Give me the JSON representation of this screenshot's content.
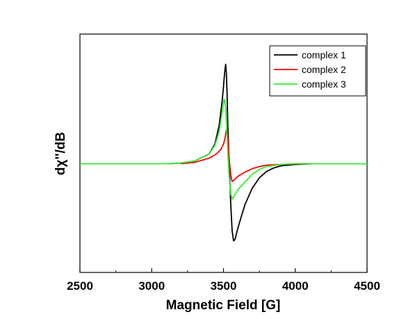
{
  "chart_data": {
    "type": "line",
    "title": "",
    "xlabel": "Magnetic Field [G]",
    "ylabel": "dχ''/dB",
    "xlim": [
      2500,
      4500
    ],
    "ylim": [
      -1.55,
      1.85
    ],
    "x_ticks": [
      2500,
      3000,
      3500,
      4000,
      4500
    ],
    "x_tick_labels": [
      "2500",
      "3000",
      "3500",
      "4000",
      "4500"
    ],
    "y_ticks_shown": false,
    "grid": false,
    "legend_position": "top-right",
    "series": [
      {
        "name": "complex 1",
        "color": "#000000",
        "x": [
          3120,
          3200,
          3300,
          3400,
          3440,
          3470,
          3490,
          3500,
          3508,
          3515,
          3520,
          3525,
          3530,
          3540,
          3550,
          3560,
          3570,
          3580,
          3590,
          3600,
          3620,
          3650,
          3700,
          3750,
          3800,
          3850,
          3900,
          4000,
          4120
        ],
        "y": [
          0.0,
          0.01,
          0.04,
          0.14,
          0.28,
          0.55,
          0.88,
          1.1,
          1.3,
          1.42,
          1.3,
          1.0,
          0.55,
          0.0,
          -0.55,
          -0.95,
          -1.1,
          -1.08,
          -1.0,
          -0.92,
          -0.78,
          -0.58,
          -0.35,
          -0.2,
          -0.11,
          -0.06,
          -0.03,
          -0.01,
          0.0
        ]
      },
      {
        "name": "complex 2",
        "color": "#ff0000",
        "x": [
          3200,
          3300,
          3400,
          3450,
          3480,
          3500,
          3510,
          3520,
          3525,
          3530,
          3540,
          3550,
          3560,
          3570,
          3580,
          3600,
          3650,
          3700,
          3750,
          3800,
          3900,
          4000,
          4120
        ],
        "y": [
          0.0,
          0.02,
          0.08,
          0.14,
          0.2,
          0.28,
          0.36,
          0.48,
          0.46,
          0.35,
          0.05,
          -0.15,
          -0.25,
          -0.24,
          -0.22,
          -0.18,
          -0.12,
          -0.07,
          -0.04,
          -0.02,
          -0.01,
          0.0,
          0.0
        ]
      },
      {
        "name": "complex 3",
        "color": "#33ee33",
        "x": [
          2500,
          3100,
          3200,
          3300,
          3400,
          3440,
          3470,
          3490,
          3500,
          3505,
          3510,
          3515,
          3520,
          3525,
          3530,
          3540,
          3550,
          3560,
          3570,
          3580,
          3600,
          3650,
          3700,
          3750,
          3800,
          3900,
          4000,
          4500
        ],
        "y": [
          0.0,
          0.0,
          0.01,
          0.04,
          0.14,
          0.26,
          0.46,
          0.72,
          0.86,
          0.92,
          0.88,
          0.8,
          0.62,
          0.4,
          0.15,
          -0.2,
          -0.42,
          -0.5,
          -0.48,
          -0.44,
          -0.37,
          -0.26,
          -0.15,
          -0.08,
          -0.04,
          -0.01,
          0.0,
          0.0
        ]
      }
    ]
  }
}
